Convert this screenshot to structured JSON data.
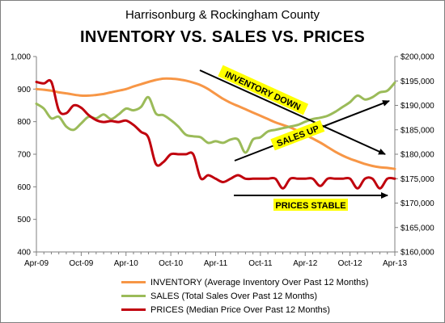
{
  "chart_data": {
    "type": "line",
    "title": "Harrisonburg & Rockingham County",
    "subtitle": "INVENTORY VS. SALES VS. PRICES",
    "x": [
      "Apr-09",
      "May-09",
      "Jun-09",
      "Jul-09",
      "Aug-09",
      "Sep-09",
      "Oct-09",
      "Nov-09",
      "Dec-09",
      "Jan-10",
      "Feb-10",
      "Mar-10",
      "Apr-10",
      "May-10",
      "Jun-10",
      "Jul-10",
      "Aug-10",
      "Sep-10",
      "Oct-10",
      "Nov-10",
      "Dec-10",
      "Jan-11",
      "Feb-11",
      "Mar-11",
      "Apr-11",
      "May-11",
      "Jun-11",
      "Jul-11",
      "Aug-11",
      "Sep-11",
      "Oct-11",
      "Nov-11",
      "Dec-11",
      "Jan-12",
      "Feb-12",
      "Mar-12",
      "Apr-12",
      "May-12",
      "Jun-12",
      "Jul-12",
      "Aug-12",
      "Sep-12",
      "Oct-12",
      "Nov-12",
      "Dec-12",
      "Jan-13",
      "Feb-13",
      "Mar-13",
      "Apr-13"
    ],
    "x_tick_labels": [
      "Apr-09",
      "Oct-09",
      "Apr-10",
      "Oct-10",
      "Apr-11",
      "Oct-11",
      "Apr-12",
      "Oct-12",
      "Apr-13"
    ],
    "y_left": {
      "min": 400,
      "max": 1000,
      "ticks": [
        "400",
        "500",
        "600",
        "700",
        "800",
        "900",
        "1,000"
      ]
    },
    "y_right": {
      "min": 160000,
      "max": 200000,
      "ticks": [
        "$160,000",
        "$165,000",
        "$170,000",
        "$175,000",
        "$180,000",
        "$185,000",
        "$190,000",
        "$195,000",
        "$200,000"
      ]
    },
    "series": [
      {
        "name": "INVENTORY (Average Inventory Over Past 12 Months)",
        "axis": "left",
        "color": "#f79646",
        "values": [
          900,
          898,
          895,
          890,
          887,
          883,
          880,
          880,
          882,
          885,
          890,
          895,
          900,
          908,
          915,
          922,
          928,
          932,
          932,
          930,
          926,
          920,
          912,
          900,
          885,
          870,
          858,
          848,
          838,
          828,
          818,
          808,
          798,
          790,
          782,
          772,
          760,
          748,
          736,
          722,
          708,
          696,
          686,
          678,
          670,
          664,
          660,
          658,
          655
        ]
      },
      {
        "name": "SALES (Total Sales Over Past 12 Months)",
        "axis": "left",
        "color": "#9bbb59",
        "values": [
          855,
          840,
          810,
          815,
          785,
          775,
          795,
          815,
          810,
          822,
          808,
          822,
          840,
          835,
          845,
          875,
          825,
          820,
          805,
          785,
          760,
          755,
          752,
          735,
          740,
          735,
          745,
          745,
          705,
          745,
          752,
          770,
          775,
          780,
          785,
          790,
          800,
          808,
          812,
          818,
          830,
          845,
          860,
          880,
          868,
          875,
          890,
          895,
          920
        ]
      },
      {
        "name": "PRICES (Median Price Over Past 12 Months)",
        "axis": "right",
        "color": "#c0000d",
        "values": [
          194800,
          194500,
          194800,
          189000,
          188400,
          190000,
          189500,
          188000,
          187000,
          186600,
          186800,
          186600,
          186900,
          186000,
          184600,
          183400,
          178000,
          178400,
          180000,
          180000,
          180000,
          180000,
          175100,
          175700,
          175000,
          174300,
          175000,
          175700,
          175000,
          175000,
          175000,
          175000,
          175000,
          173000,
          175000,
          175000,
          175000,
          175000,
          173500,
          175000,
          175000,
          175000,
          175000,
          173000,
          175000,
          175000,
          173000,
          175000,
          175000
        ]
      }
    ],
    "annotations": [
      {
        "text": "INVENTORY DOWN",
        "highlight": "#ffff00"
      },
      {
        "text": "SALES UP",
        "highlight": "#ffff00"
      },
      {
        "text": "PRICES STABLE",
        "highlight": "#ffff00"
      }
    ],
    "grid": false,
    "legend_position": "bottom"
  }
}
